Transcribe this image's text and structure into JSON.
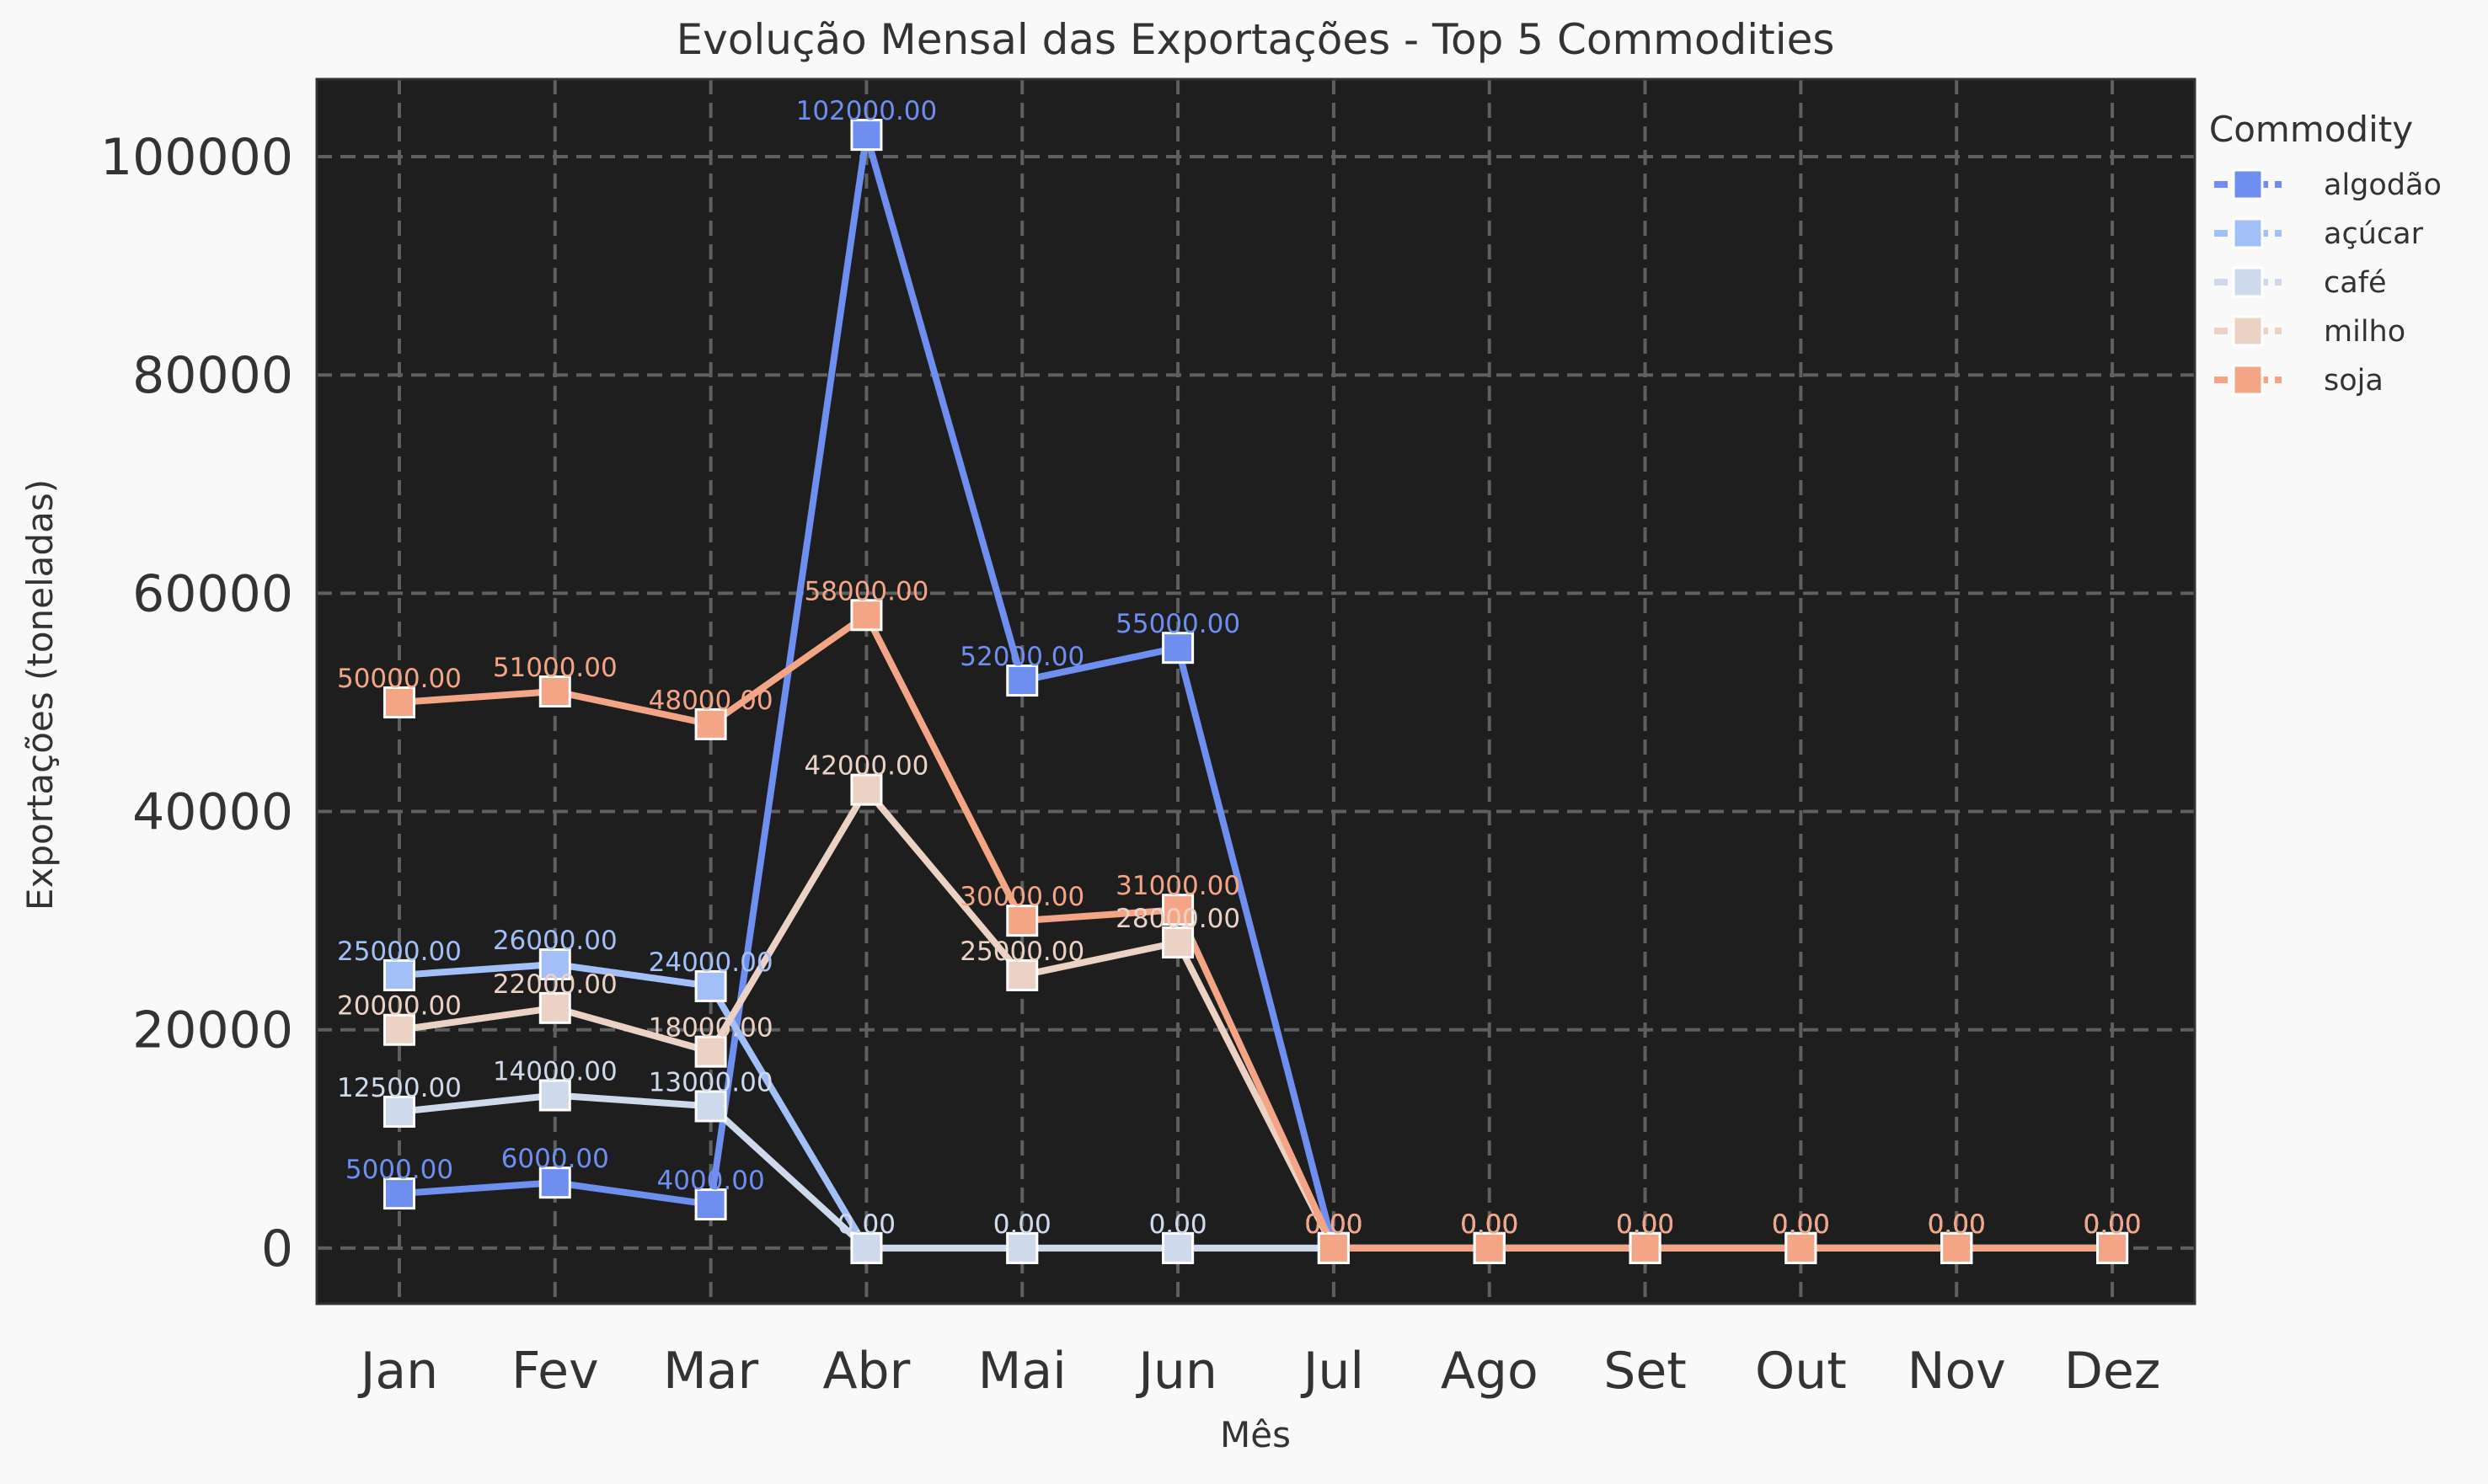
{
  "chart_data": {
    "type": "line",
    "title": "Evolução Mensal das Exportações - Top 5 Commodities",
    "xlabel": "Mês",
    "ylabel": "Exportações (toneladas)",
    "categories": [
      "Jan",
      "Fev",
      "Mar",
      "Abr",
      "Mai",
      "Jun",
      "Jul",
      "Ago",
      "Set",
      "Out",
      "Nov",
      "Dez"
    ],
    "ylim": [
      -5100,
      107100
    ],
    "yticks": [
      0,
      20000,
      40000,
      60000,
      80000,
      100000
    ],
    "grid": true,
    "legend": {
      "title": "Commodity",
      "position": "outside-right-top"
    },
    "marker": "square",
    "plot_background": "#1e1e1e",
    "series": [
      {
        "name": "algodão",
        "color": "#6e8ff0",
        "values": [
          5000,
          6000,
          4000,
          102000,
          52000,
          55000,
          0,
          0,
          0,
          0,
          0,
          0
        ],
        "labels": [
          "5000.00",
          "6000.00",
          "4000.00",
          "102000.00",
          "52000.00",
          "55000.00",
          "0.00",
          "0.00",
          "0.00",
          "0.00",
          "0.00",
          "0.00"
        ]
      },
      {
        "name": "açúcar",
        "color": "#a2bff7",
        "values": [
          25000,
          26000,
          24000,
          0,
          0,
          0,
          0,
          0,
          0,
          0,
          0,
          0
        ],
        "labels": [
          "25000.00",
          "26000.00",
          "24000.00",
          "0.00",
          "0.00",
          "0.00",
          "0.00",
          "0.00",
          "0.00",
          "0.00",
          "0.00",
          "0.00"
        ]
      },
      {
        "name": "café",
        "color": "#cfd9ec",
        "values": [
          12500,
          14000,
          13000,
          0,
          0,
          0,
          0,
          0,
          0,
          0,
          0,
          0
        ],
        "labels": [
          "12500.00",
          "14000.00",
          "13000.00",
          "0.00",
          "0.00",
          "0.00",
          "0.00",
          "0.00",
          "0.00",
          "0.00",
          "0.00",
          "0.00"
        ]
      },
      {
        "name": "milho",
        "color": "#ecd2c4",
        "values": [
          20000,
          22000,
          18000,
          42000,
          25000,
          28000,
          0,
          0,
          0,
          0,
          0,
          0
        ],
        "labels": [
          "20000.00",
          "22000.00",
          "18000.00",
          "42000.00",
          "25000.00",
          "28000.00",
          "0.00",
          "0.00",
          "0.00",
          "0.00",
          "0.00",
          "0.00"
        ]
      },
      {
        "name": "soja",
        "color": "#f4a586",
        "values": [
          50000,
          51000,
          48000,
          58000,
          30000,
          31000,
          0,
          0,
          0,
          0,
          0,
          0
        ],
        "labels": [
          "50000.00",
          "51000.00",
          "48000.00",
          "58000.00",
          "30000.00",
          "31000.00",
          "0.00",
          "0.00",
          "0.00",
          "0.00",
          "0.00",
          "0.00"
        ]
      }
    ]
  }
}
